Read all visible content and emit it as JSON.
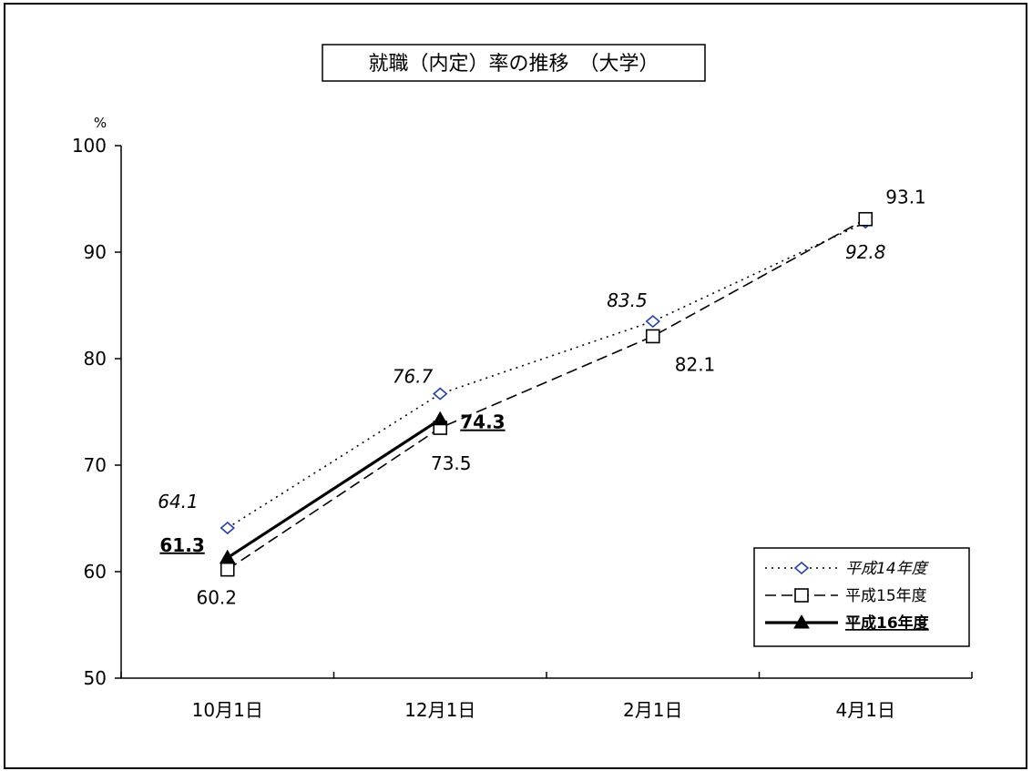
{
  "chart_data": {
    "type": "line",
    "title": "就職（内定）率の推移　（大学）",
    "ylabel": "%",
    "xlabel": "",
    "ylim": [
      50,
      100
    ],
    "yticks": [
      50,
      60,
      70,
      80,
      90,
      100
    ],
    "categories": [
      "10月1日",
      "12月1日",
      "2月1日",
      "4月1日"
    ],
    "grid": false,
    "legend_position": "bottom-right",
    "series": [
      {
        "name": "平成14年度",
        "values": [
          64.1,
          76.7,
          83.5,
          92.8
        ],
        "labels": [
          "64.1",
          "76.7",
          "83.5",
          "92.8"
        ],
        "line_style": "dotted",
        "marker": "diamond",
        "color": "#000000",
        "marker_color": "#1f3fbf",
        "label_style": "italic"
      },
      {
        "name": "平成15年度",
        "values": [
          60.2,
          73.5,
          82.1,
          93.1
        ],
        "labels": [
          "60.2",
          "73.5",
          "82.1",
          "93.1"
        ],
        "line_style": "dashed",
        "marker": "square",
        "color": "#000000",
        "marker_color": "#000000",
        "label_style": "normal"
      },
      {
        "name": "平成16年度",
        "values": [
          61.3,
          74.3,
          null,
          null
        ],
        "labels": [
          "61.3",
          "74.3",
          null,
          null
        ],
        "line_style": "solid",
        "marker": "triangle",
        "color": "#000000",
        "marker_color": "#000000",
        "label_style": "bold-underline"
      }
    ]
  }
}
